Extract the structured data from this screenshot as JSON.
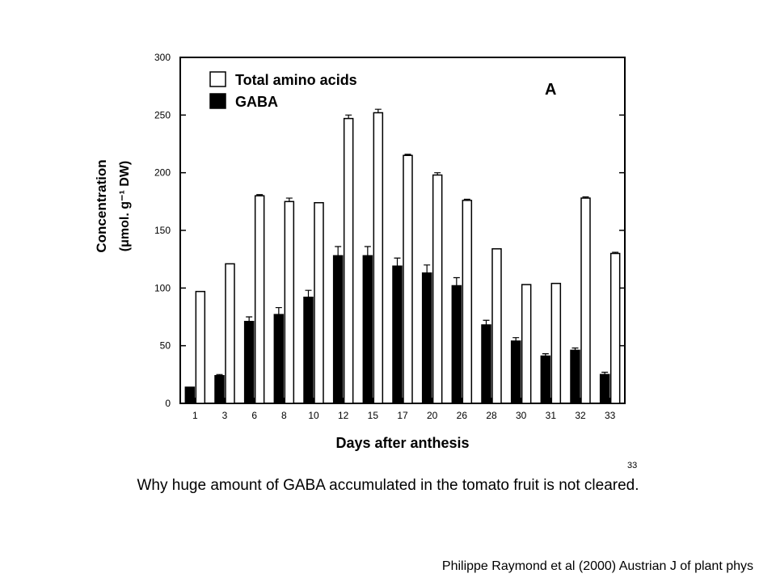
{
  "chart_data": {
    "type": "bar",
    "panel_label": "A",
    "xlabel": "Days after anthesis",
    "ylabel_line1": "Concentration",
    "ylabel_line2": "(μmol. g⁻¹ DW)",
    "ylim": [
      0,
      300
    ],
    "yticks": [
      0,
      50,
      100,
      150,
      200,
      250,
      300
    ],
    "categories": [
      "1",
      "3",
      "6",
      "8",
      "10",
      "12",
      "15",
      "17",
      "20",
      "26",
      "28",
      "30",
      "31",
      "32",
      "33"
    ],
    "legend_position": "top-left",
    "grid": false,
    "series": [
      {
        "name": "Total amino acids",
        "fill": "#ffffff",
        "values": [
          97,
          121,
          180,
          175,
          174,
          247,
          252,
          215,
          198,
          176,
          134,
          103,
          104,
          178,
          130
        ],
        "errors": [
          0,
          0,
          1,
          3,
          0,
          3,
          3,
          1,
          2,
          1,
          0,
          0,
          0,
          1,
          1
        ]
      },
      {
        "name": "GABA",
        "fill": "#000000",
        "values": [
          14,
          24,
          71,
          77,
          92,
          128,
          128,
          119,
          113,
          102,
          68,
          54,
          41,
          46,
          25
        ],
        "errors": [
          0,
          1,
          4,
          6,
          6,
          8,
          8,
          7,
          7,
          7,
          4,
          3,
          2,
          2,
          2
        ]
      }
    ]
  },
  "slide_number": "33",
  "question": "Why huge amount of GABA accumulated in the tomato fruit is not cleared.",
  "citation": "Philippe Raymond et al (2000) Austrian J of plant phys"
}
